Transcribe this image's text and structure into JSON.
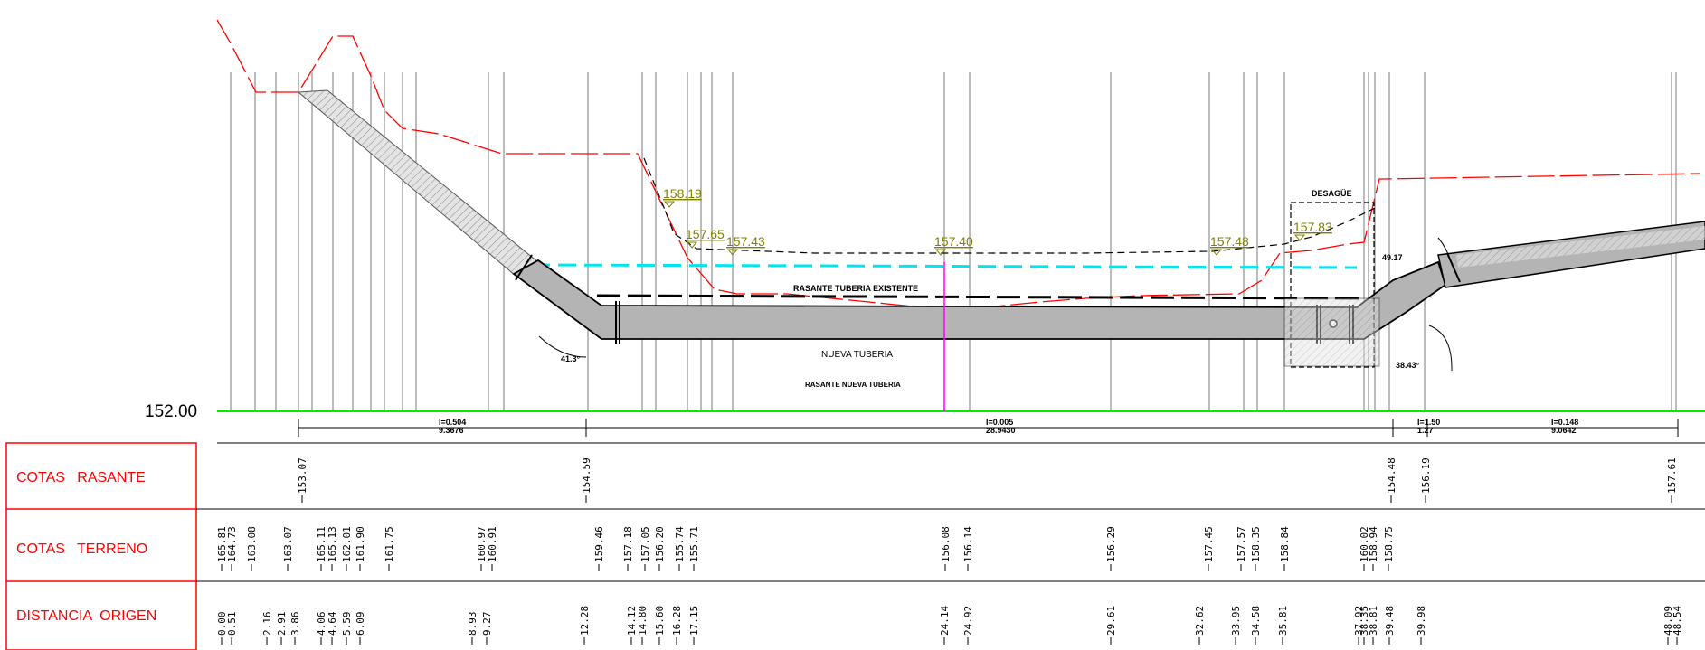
{
  "header": {
    "cut_text": ""
  },
  "profile": {
    "datum_label": "152.00",
    "annotations": {
      "rasante_existente": "RASANTE TUBERIA EXISTENTE",
      "nueva_tuberia": "NUEVA TUBERIA",
      "rasante_nueva": "RASANTE NUEVA TUBERIA",
      "desague": "DESAGÜE",
      "angle_left": "41.3°",
      "angle_right_top": "49.17",
      "angle_right_bottom": "38.43°"
    },
    "level_marks": [
      "158.19",
      "157.65",
      "157.43",
      "157.40",
      "157.48",
      "157.83"
    ],
    "slopes": [
      {
        "i": "I=0.504",
        "len": "9.3676"
      },
      {
        "i": "I=0.005",
        "len": "28.9430"
      },
      {
        "i": "I=1.50",
        "len": "1.27"
      },
      {
        "i": "I=0.148",
        "len": "9.0642"
      }
    ]
  },
  "table": {
    "rows": [
      {
        "label": "COTAS   RASANTE"
      },
      {
        "label": "COTAS   TERRENO"
      },
      {
        "label": "DISTANCIA  ORIGEN"
      }
    ],
    "rasante_values": [
      "153.07",
      "154.59",
      "154.48",
      "156.19",
      "157.61"
    ],
    "terreno_values": [
      "165.81",
      "164.73",
      "163.08",
      "163.07",
      "165.11",
      "165.13",
      "162.01",
      "161.90",
      "161.75",
      "160.97",
      "160.91",
      "159.46",
      "157.18",
      "157.05",
      "156.20",
      "155.74",
      "155.71",
      "156.08",
      "156.14",
      "156.29",
      "157.45",
      "157.57",
      "158.35",
      "158.84",
      "160.02",
      "158.94",
      "158.75"
    ],
    "distancia_values": [
      "0.00",
      "0.51",
      "2.16",
      "2.91",
      "3.86",
      "4.06",
      "4.64",
      "5.59",
      "6.09",
      "8.93",
      "9.27",
      "12.28",
      "14.12",
      "14.80",
      "15.60",
      "16.28",
      "17.15",
      "24.14",
      "24.92",
      "29.61",
      "32.62",
      "33.95",
      "34.58",
      "35.81",
      "37.92",
      "38.35",
      "38.81",
      "39.48",
      "39.98",
      "48.09",
      "48.54"
    ]
  },
  "colors": {
    "terrain": "#ff0000",
    "datum": "#00ee00",
    "water": "#00e5ee",
    "level": "#808000",
    "table_border": "#ff0000",
    "label_text": "#ff0000",
    "pipe_fill": "#b4b4b4",
    "center_mark": "#ff00ff"
  }
}
